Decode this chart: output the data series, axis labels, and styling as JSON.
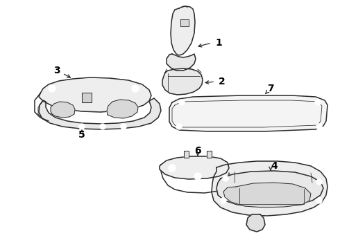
{
  "background_color": "#ffffff",
  "line_color": "#2a2a2a",
  "label_color": "#000000",
  "figure_width": 4.9,
  "figure_height": 3.6,
  "dpi": 100
}
